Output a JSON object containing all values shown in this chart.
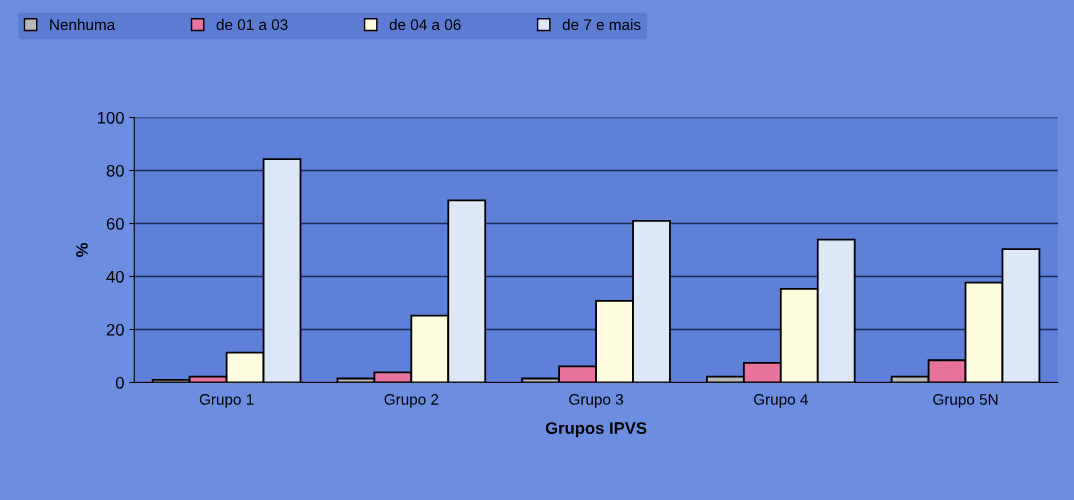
{
  "chart_data": {
    "type": "bar",
    "xlabel": "Grupos IPVS",
    "ylabel": "%",
    "categories": [
      "Grupo 1",
      "Grupo 2",
      "Grupo 3",
      "Grupo 4",
      "Grupo 5N"
    ],
    "series": [
      {
        "name": "Nenhuma",
        "color": "#b8b8b8",
        "values": [
          1,
          1.5,
          1.5,
          2.2,
          2.2
        ]
      },
      {
        "name": "de 01 a 03",
        "color": "#e8739c",
        "values": [
          2.2,
          3.8,
          6.1,
          7.4,
          8.4
        ]
      },
      {
        "name": "de 04 a 06",
        "color": "#fffde0",
        "values": [
          11.3,
          25.2,
          30.8,
          35.3,
          37.7
        ]
      },
      {
        "name": "de 7 e mais",
        "color": "#dce8f8",
        "values": [
          84.3,
          68.7,
          61,
          53.9,
          50.3
        ]
      }
    ],
    "ylim": [
      0,
      100
    ],
    "yticks": [
      0,
      20,
      40,
      60,
      80,
      100
    ],
    "grid": "y",
    "legend": "top"
  }
}
